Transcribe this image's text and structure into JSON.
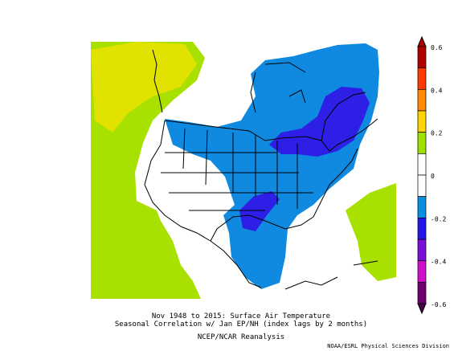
{
  "figure": {
    "title_line1": "Nov 1948 to 2015: Surface Air Temperature",
    "title_line2": "Seasonal Correlation w/ Jan EP/NH (index lags by 2 months)",
    "subtitle": "NCEP/NCAR Reanalysis",
    "credit": "NOAA/ESRL Physical Sciences Division"
  },
  "colorbar": {
    "levels": [
      {
        "label": "0.6",
        "color": "#a00000"
      },
      {
        "label": "0.4",
        "color": "#ff8000"
      },
      {
        "label": "0.2",
        "color": "#ffd800"
      },
      {
        "label": "0",
        "color": "#9ee000"
      },
      {
        "label": "-0.2",
        "color": "#ffffff"
      },
      {
        "label": "-0.4",
        "color": "#0c8ce0"
      },
      {
        "label": "-0.6",
        "color": "#2010e0"
      }
    ],
    "band_colors": [
      "#b00000",
      "#ff3a00",
      "#ff8c00",
      "#ffd400",
      "#9ee000",
      "#ffffff",
      "#ffffff",
      "#0a8ee0",
      "#2418e8",
      "#7a10d8",
      "#d010c8",
      "#700070"
    ],
    "tick_labels": [
      "0.6",
      "0.4",
      "0.2",
      "0",
      "-0.2",
      "-0.4",
      "-0.6"
    ]
  },
  "map": {
    "palette": {
      "yellow_green": "#e2e200",
      "light_green": "#a8e000",
      "white": "#ffffff",
      "blue": "#1089e0",
      "dark_blue": "#2e1fe6",
      "outline": "#000000"
    }
  }
}
